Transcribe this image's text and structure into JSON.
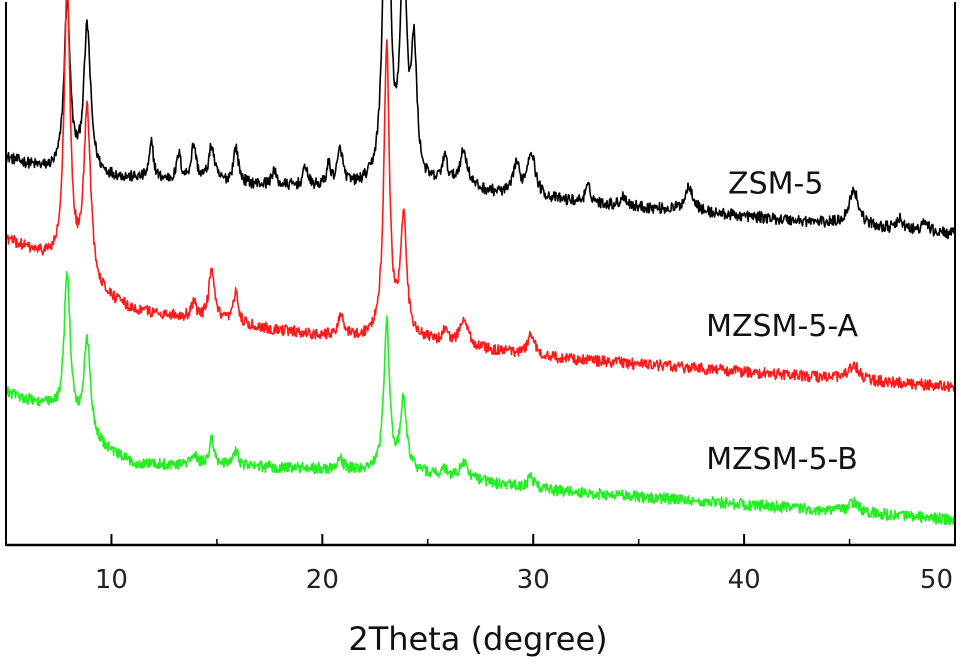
{
  "chart_data": {
    "type": "line",
    "title": "",
    "xlabel": "2Theta (degree)",
    "ylabel": "",
    "xlim": [
      5,
      50
    ],
    "xticks": [
      10,
      20,
      30,
      40,
      50
    ],
    "xtick_labels": [
      "10",
      "20",
      "30",
      "40",
      "50"
    ],
    "yticks_shown": false,
    "grid": false,
    "legend": "inline labels next to curves",
    "colors": {
      "ZSM-5": "#000000",
      "MZSM-5-A": "#ff1a1a",
      "MZSM-5-B": "#22ee22",
      "axis": "#000000"
    },
    "peaks": [
      {
        "pos": 7.9,
        "width": 0.22
      },
      {
        "pos": 8.85,
        "width": 0.25
      },
      {
        "pos": 11.9,
        "width": 0.15
      },
      {
        "pos": 13.2,
        "width": 0.15
      },
      {
        "pos": 13.9,
        "width": 0.18
      },
      {
        "pos": 14.75,
        "width": 0.2
      },
      {
        "pos": 15.9,
        "width": 0.18
      },
      {
        "pos": 17.7,
        "width": 0.15
      },
      {
        "pos": 19.2,
        "width": 0.15
      },
      {
        "pos": 20.3,
        "width": 0.15
      },
      {
        "pos": 20.85,
        "width": 0.2
      },
      {
        "pos": 23.05,
        "width": 0.2
      },
      {
        "pos": 23.85,
        "width": 0.22
      },
      {
        "pos": 24.35,
        "width": 0.2
      },
      {
        "pos": 25.8,
        "width": 0.2
      },
      {
        "pos": 26.7,
        "width": 0.3
      },
      {
        "pos": 29.2,
        "width": 0.2
      },
      {
        "pos": 29.9,
        "width": 0.3
      },
      {
        "pos": 32.6,
        "width": 0.2
      },
      {
        "pos": 34.3,
        "width": 0.2
      },
      {
        "pos": 37.4,
        "width": 0.3
      },
      {
        "pos": 45.2,
        "width": 0.35
      },
      {
        "pos": 47.4,
        "width": 0.2
      },
      {
        "pos": 48.6,
        "width": 0.2
      }
    ],
    "series": [
      {
        "name": "ZSM-5",
        "baseline": [
          [
            5,
            0.73
          ],
          [
            8,
            0.69
          ],
          [
            10,
            0.69
          ],
          [
            20,
            0.67
          ],
          [
            26,
            0.67
          ],
          [
            30,
            0.65
          ],
          [
            50,
            0.58
          ]
        ],
        "peak_heights": [
          0.34,
          0.29,
          0.07,
          0.05,
          0.07,
          0.07,
          0.07,
          0.03,
          0.04,
          0.04,
          0.07,
          0.89,
          0.46,
          0.25,
          0.05,
          0.07,
          0.06,
          0.09,
          0.03,
          0.02,
          0.05,
          0.07,
          0.02,
          0.02
        ]
      },
      {
        "name": "MZSM-5-A",
        "baseline": [
          [
            5,
            0.57
          ],
          [
            7,
            0.53
          ],
          [
            9,
            0.47
          ],
          [
            11,
            0.43
          ],
          [
            20,
            0.38
          ],
          [
            25,
            0.37
          ],
          [
            30,
            0.34
          ],
          [
            50,
            0.28
          ]
        ],
        "peak_heights": [
          0.55,
          0.34,
          0.0,
          0.0,
          0.03,
          0.1,
          0.06,
          0.0,
          0.0,
          0.0,
          0.04,
          0.57,
          0.23,
          0.0,
          0.02,
          0.05,
          0.0,
          0.04,
          0.0,
          0.0,
          0.0,
          0.03,
          0.0,
          0.0
        ]
      },
      {
        "name": "MZSM-5-B",
        "baseline": [
          [
            5,
            0.27
          ],
          [
            7,
            0.24
          ],
          [
            9,
            0.17
          ],
          [
            11,
            0.13
          ],
          [
            20,
            0.12
          ],
          [
            25,
            0.11
          ],
          [
            30,
            0.08
          ],
          [
            50,
            0.02
          ]
        ],
        "peak_heights": [
          0.29,
          0.19,
          0.0,
          0.0,
          0.02,
          0.05,
          0.03,
          0.0,
          0.0,
          0.0,
          0.02,
          0.29,
          0.14,
          0.0,
          0.01,
          0.03,
          0.0,
          0.02,
          0.0,
          0.0,
          0.0,
          0.02,
          0.0,
          0.0
        ]
      }
    ],
    "series_labels": [
      {
        "text": "ZSM-5",
        "x": 41.5,
        "y": 0.66
      },
      {
        "text": "MZSM-5-A",
        "x": 41.8,
        "y": 0.38
      },
      {
        "text": "MZSM-5-B",
        "x": 41.8,
        "y": 0.12
      }
    ]
  }
}
